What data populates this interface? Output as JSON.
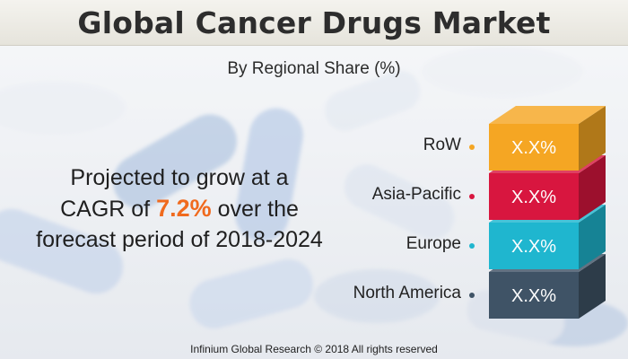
{
  "title": "Global Cancer Drugs Market",
  "chart_data": {
    "type": "bar",
    "title": "Global Cancer Drugs Market",
    "subtitle": "By Regional Share (%)",
    "categories": [
      "RoW",
      "Asia-Pacific",
      "Europe",
      "North America"
    ],
    "value_labels": [
      "X.X%",
      "X.X%",
      "X.X%",
      "X.X%"
    ],
    "colors": [
      "#f5a623",
      "#d8163f",
      "#1fb6cf",
      "#3f5366"
    ],
    "legend_placement": "left of stacked blocks"
  },
  "cagr": {
    "line1": "Projected to grow at a",
    "prefix": "CAGR of ",
    "value": "7.2%",
    "suffix": " over the",
    "line3": "forecast period of 2018-2024"
  },
  "footer": "Infinium Global Research © 2018 All rights reserved"
}
